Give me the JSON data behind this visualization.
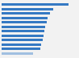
{
  "values": [
    5.3,
    4.1,
    3.8,
    3.65,
    3.55,
    3.45,
    3.4,
    3.35,
    3.25,
    3.15,
    3.05,
    2.5
  ],
  "bar_color": "#3579c3",
  "last_bar_color": "#a0bfe0",
  "background_color": "#f2f2f2",
  "xlim_max": 6.0
}
